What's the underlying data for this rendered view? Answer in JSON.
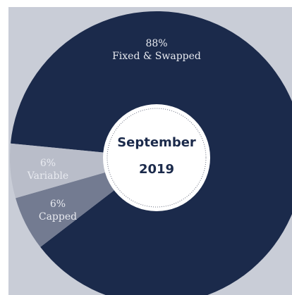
{
  "chart_data": {
    "type": "pie",
    "center_text": [
      "September",
      "2019"
    ],
    "categories": [
      "Fixed & Swapped",
      "Capped",
      "Variable"
    ],
    "values": [
      88,
      6,
      6
    ],
    "value_labels": [
      "88%",
      "6%",
      "6%"
    ],
    "colors": [
      "#1b2a4b",
      "#737b91",
      "#b9bdc9"
    ]
  }
}
